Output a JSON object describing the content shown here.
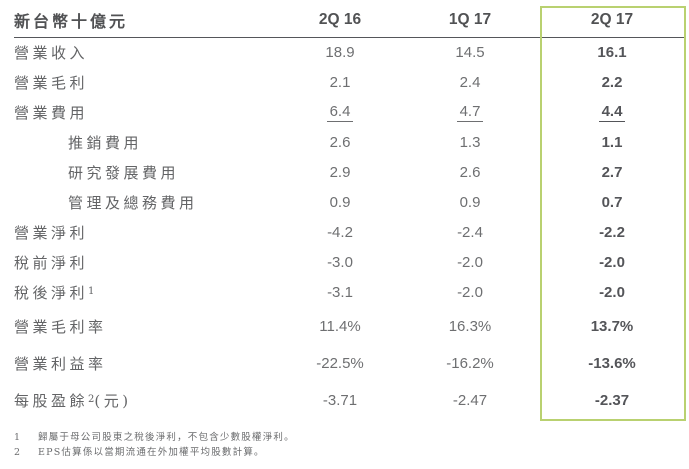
{
  "table": {
    "unit_header": "新台幣十億元",
    "columns": [
      "2Q 16",
      "1Q 17",
      "2Q 17"
    ],
    "rows": [
      {
        "label": "營業收入",
        "label_sup": "",
        "label_suffix": "",
        "values": [
          "18.9",
          "14.5",
          "16.1"
        ]
      },
      {
        "label": "營業毛利",
        "label_sup": "",
        "label_suffix": "",
        "values": [
          "2.1",
          "2.4",
          "2.2"
        ]
      },
      {
        "label": "營業費用",
        "label_sup": "",
        "label_suffix": "",
        "values": [
          "6.4",
          "4.7",
          "4.4"
        ]
      },
      {
        "label": "推銷費用",
        "label_sup": "",
        "label_suffix": "",
        "values": [
          "2.6",
          "1.3",
          "1.1"
        ]
      },
      {
        "label": "研究發展費用",
        "label_sup": "",
        "label_suffix": "",
        "values": [
          "2.9",
          "2.6",
          "2.7"
        ]
      },
      {
        "label": "管理及總務費用",
        "label_sup": "",
        "label_suffix": "",
        "values": [
          "0.9",
          "0.9",
          "0.7"
        ]
      },
      {
        "label": "營業淨利",
        "label_sup": "",
        "label_suffix": "",
        "values": [
          "-4.2",
          "-2.4",
          "-2.2"
        ]
      },
      {
        "label": "稅前淨利",
        "label_sup": "",
        "label_suffix": "",
        "values": [
          "-3.0",
          "-2.0",
          "-2.0"
        ]
      },
      {
        "label": "稅後淨利",
        "label_sup": "1",
        "label_suffix": "",
        "values": [
          "-3.1",
          "-2.0",
          "-2.0"
        ]
      },
      {
        "label": "營業毛利率",
        "label_sup": "",
        "label_suffix": "",
        "values": [
          "11.4%",
          "16.3%",
          "13.7%"
        ]
      },
      {
        "label": "營業利益率",
        "label_sup": "",
        "label_suffix": "",
        "values": [
          "-22.5%",
          "-16.2%",
          "-13.6%"
        ]
      },
      {
        "label": "每股盈餘",
        "label_sup": "2",
        "label_suffix": "(元)",
        "values": [
          "-3.71",
          "-2.47",
          "-2.37"
        ]
      }
    ],
    "highlight_color": "#b9d170"
  },
  "footnotes": [
    {
      "num": "1",
      "text": "歸屬于母公司股東之稅後淨利，不包含少數股權淨利。"
    },
    {
      "num": "2",
      "text": "EPS估算係以當期流通在外加權平均股數計算。"
    }
  ]
}
